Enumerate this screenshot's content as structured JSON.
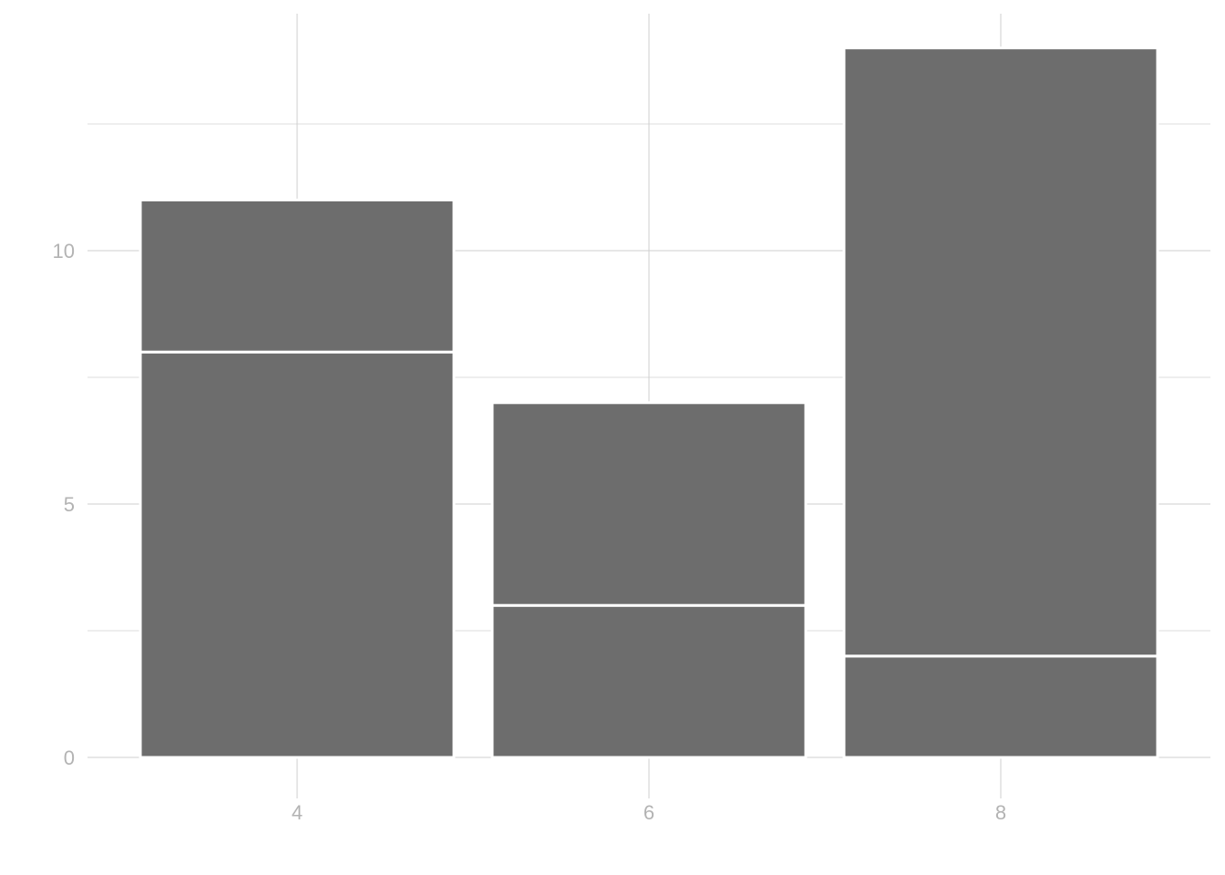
{
  "chart_data": {
    "type": "bar",
    "stacked": true,
    "categories": [
      "4",
      "6",
      "8"
    ],
    "series": [
      {
        "values": [
          8,
          3,
          2
        ]
      },
      {
        "values": [
          3,
          4,
          12
        ]
      }
    ],
    "title": "",
    "xlabel": "",
    "ylabel": "",
    "ylim": [
      0,
      14
    ],
    "yticks": [
      "0",
      "5",
      "10"
    ],
    "grid": true,
    "bar_color": "#6d6d6d",
    "segment_border_color": "#ffffff"
  }
}
